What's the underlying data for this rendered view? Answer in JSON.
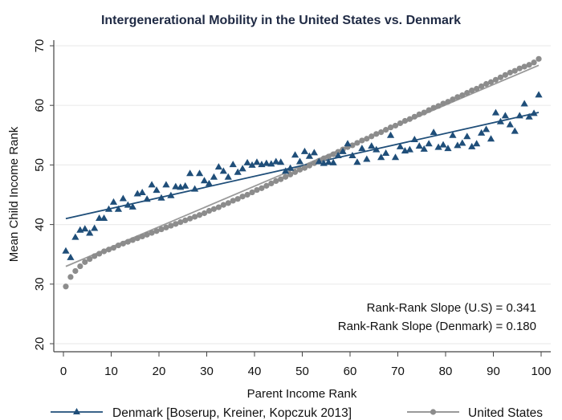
{
  "chart_data": {
    "type": "scatter",
    "title": "Intergenerational Mobility in the United States vs. Denmark",
    "xlabel": "Parent Income Rank",
    "ylabel": "Mean Child Income Rank",
    "xlim": [
      0,
      100
    ],
    "ylim": [
      20,
      70
    ],
    "xticks": [
      0,
      10,
      20,
      30,
      40,
      50,
      60,
      70,
      80,
      90,
      100
    ],
    "yticks": [
      20,
      30,
      40,
      50,
      60,
      70
    ],
    "grid": "horizontal",
    "legend_position": "bottom",
    "annotations": [
      "Rank-Rank Slope (U.S) = 0.341",
      "Rank-Rank Slope (Denmark) = 0.180"
    ],
    "colors": {
      "denmark": "#1f4e79",
      "united_states": "#8c8c8c",
      "us_fit": "#9a9a9a",
      "grid": "#ececec",
      "axis": "#444444",
      "title": "#1f2a44"
    },
    "series": [
      {
        "name": "Denmark [Boserup, Kreiner, Kopczuk 2013]",
        "marker": "triangle",
        "fit": {
          "slope": 0.18,
          "intercept": 40.9,
          "x_range": [
            0.5,
            99.5
          ]
        },
        "x": [
          0.5,
          1.5,
          2.5,
          3.5,
          4.5,
          5.5,
          6.5,
          7.5,
          8.5,
          9.5,
          10.5,
          11.5,
          12.5,
          13.5,
          14.5,
          15.5,
          16.5,
          17.5,
          18.5,
          19.5,
          20.5,
          21.5,
          22.5,
          23.5,
          24.5,
          25.5,
          26.5,
          27.5,
          28.5,
          29.5,
          30.5,
          31.5,
          32.5,
          33.5,
          34.5,
          35.5,
          36.5,
          37.5,
          38.5,
          39.5,
          40.5,
          41.5,
          42.5,
          43.5,
          44.5,
          45.5,
          46.5,
          47.5,
          48.5,
          49.5,
          50.5,
          51.5,
          52.5,
          53.5,
          54.5,
          55.5,
          56.5,
          57.5,
          58.5,
          59.5,
          60.5,
          61.5,
          62.5,
          63.5,
          64.5,
          65.5,
          66.5,
          67.5,
          68.5,
          69.5,
          70.5,
          71.5,
          72.5,
          73.5,
          74.5,
          75.5,
          76.5,
          77.5,
          78.5,
          79.5,
          80.5,
          81.5,
          82.5,
          83.5,
          84.5,
          85.5,
          86.5,
          87.5,
          88.5,
          89.5,
          90.5,
          91.5,
          92.5,
          93.5,
          94.5,
          95.5,
          96.5,
          97.5,
          98.5,
          99.5
        ],
        "y": [
          35.6,
          34.5,
          37.9,
          39.1,
          39.3,
          38.6,
          39.4,
          41.1,
          41.1,
          42.6,
          43.8,
          42.6,
          44.4,
          43.3,
          43.0,
          45.2,
          45.4,
          44.3,
          46.7,
          45.8,
          44.5,
          46.7,
          44.9,
          46.4,
          46.3,
          46.5,
          48.6,
          46.0,
          48.6,
          47.4,
          46.9,
          48.0,
          49.7,
          49.0,
          48.0,
          50.1,
          48.8,
          49.4,
          50.4,
          50.0,
          50.5,
          50.1,
          50.3,
          50.2,
          50.6,
          50.5,
          49.0,
          49.5,
          51.7,
          50.6,
          52.3,
          51.5,
          52.1,
          50.6,
          50.3,
          50.5,
          50.4,
          51.6,
          52.3,
          53.6,
          51.6,
          50.5,
          52.8,
          51.0,
          53.2,
          52.6,
          51.3,
          52.0,
          55.0,
          51.3,
          53.1,
          52.4,
          52.6,
          54.3,
          53.2,
          52.7,
          53.6,
          55.5,
          53.0,
          53.4,
          52.8,
          55.0,
          53.3,
          53.7,
          54.8,
          53.1,
          53.6,
          55.4,
          56.0,
          54.4,
          58.8,
          57.3,
          58.3,
          56.8,
          55.7,
          58.3,
          60.3,
          58.1,
          58.7,
          61.8
        ]
      },
      {
        "name": "United States",
        "marker": "circle",
        "fit": {
          "slope": 0.341,
          "intercept": 32.8,
          "x_range": [
            0.5,
            99.5
          ]
        },
        "x": [
          0.5,
          1.5,
          2.5,
          3.5,
          4.5,
          5.5,
          6.5,
          7.5,
          8.5,
          9.5,
          10.5,
          11.5,
          12.5,
          13.5,
          14.5,
          15.5,
          16.5,
          17.5,
          18.5,
          19.5,
          20.5,
          21.5,
          22.5,
          23.5,
          24.5,
          25.5,
          26.5,
          27.5,
          28.5,
          29.5,
          30.5,
          31.5,
          32.5,
          33.5,
          34.5,
          35.5,
          36.5,
          37.5,
          38.5,
          39.5,
          40.5,
          41.5,
          42.5,
          43.5,
          44.5,
          45.5,
          46.5,
          47.5,
          48.5,
          49.5,
          50.5,
          51.5,
          52.5,
          53.5,
          54.5,
          55.5,
          56.5,
          57.5,
          58.5,
          59.5,
          60.5,
          61.5,
          62.5,
          63.5,
          64.5,
          65.5,
          66.5,
          67.5,
          68.5,
          69.5,
          70.5,
          71.5,
          72.5,
          73.5,
          74.5,
          75.5,
          76.5,
          77.5,
          78.5,
          79.5,
          80.5,
          81.5,
          82.5,
          83.5,
          84.5,
          85.5,
          86.5,
          87.5,
          88.5,
          89.5,
          90.5,
          91.5,
          92.5,
          93.5,
          94.5,
          95.5,
          96.5,
          97.5,
          98.5,
          99.5
        ],
        "y": [
          29.6,
          31.2,
          32.2,
          33.0,
          33.7,
          34.2,
          34.7,
          35.1,
          35.5,
          35.8,
          36.1,
          36.5,
          36.8,
          37.1,
          37.4,
          37.7,
          38.0,
          38.3,
          38.6,
          38.9,
          39.2,
          39.5,
          39.8,
          40.1,
          40.4,
          40.7,
          41.0,
          41.3,
          41.6,
          41.9,
          42.3,
          42.6,
          42.9,
          43.3,
          43.6,
          44.0,
          44.3,
          44.7,
          45.0,
          45.4,
          45.8,
          46.1,
          46.5,
          46.9,
          47.3,
          47.6,
          48.0,
          48.4,
          48.8,
          49.2,
          49.5,
          49.9,
          50.3,
          50.7,
          51.1,
          51.4,
          51.8,
          52.2,
          52.6,
          53.0,
          53.3,
          53.7,
          54.1,
          54.4,
          54.8,
          55.2,
          55.5,
          55.9,
          56.3,
          56.6,
          57.0,
          57.4,
          57.7,
          58.1,
          58.5,
          58.8,
          59.2,
          59.6,
          59.9,
          60.3,
          60.6,
          61.0,
          61.4,
          61.7,
          62.1,
          62.5,
          62.8,
          63.2,
          63.6,
          63.9,
          64.3,
          64.7,
          65.1,
          65.5,
          65.8,
          66.2,
          66.5,
          66.8,
          67.2,
          67.8
        ]
      }
    ]
  }
}
